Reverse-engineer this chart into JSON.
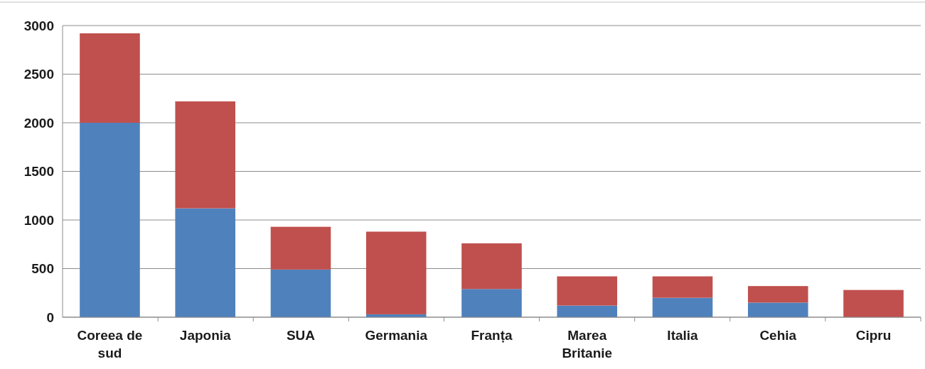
{
  "chart_data": {
    "type": "bar",
    "stacked": true,
    "categories": [
      "Coreea de sud",
      "Japonia",
      "SUA",
      "Germania",
      "Franța",
      "Marea Britanie",
      "Italia",
      "Cehia",
      "Cipru"
    ],
    "series": [
      {
        "color": "#4f81bd",
        "values": [
          2000,
          1120,
          490,
          30,
          290,
          120,
          200,
          150,
          0
        ]
      },
      {
        "color": "#c0504d",
        "values": [
          920,
          1100,
          440,
          850,
          470,
          300,
          220,
          170,
          280
        ]
      }
    ],
    "ylim": [
      0,
      3000
    ],
    "yticks": [
      0,
      500,
      1000,
      1500,
      2000,
      2500,
      3000
    ],
    "grid": "y"
  }
}
